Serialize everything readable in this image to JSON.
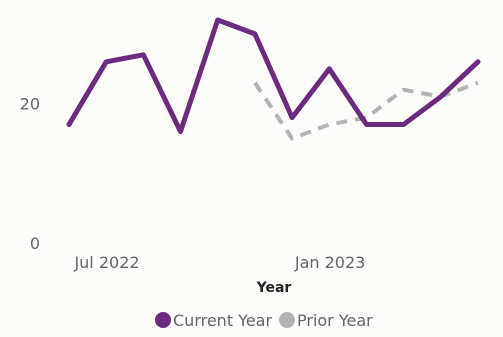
{
  "chart_data": {
    "type": "line",
    "title": "",
    "xlabel": "Year",
    "ylabel": "",
    "x": [
      "2022-07",
      "2022-08",
      "2022-09",
      "2022-10",
      "2022-11",
      "2022-12",
      "2023-01",
      "2023-02",
      "2023-03",
      "2023-04",
      "2023-05",
      "2023-06"
    ],
    "x_tick_labels": [
      "Jul 2022",
      "Jan 2023"
    ],
    "y_ticks": [
      0,
      20
    ],
    "ylim": [
      0,
      32
    ],
    "grid": false,
    "legend_position": "bottom",
    "series": [
      {
        "name": "Current Year",
        "color": "#6b2c7f",
        "style": "solid",
        "values": [
          17,
          26,
          27,
          16,
          32,
          30,
          18,
          25,
          17,
          17,
          21,
          26
        ]
      },
      {
        "name": "Prior Year",
        "color": "#b3b3b3",
        "style": "dashed",
        "values": [
          null,
          null,
          null,
          null,
          null,
          23,
          15,
          17,
          18,
          22,
          21,
          23
        ]
      }
    ]
  }
}
